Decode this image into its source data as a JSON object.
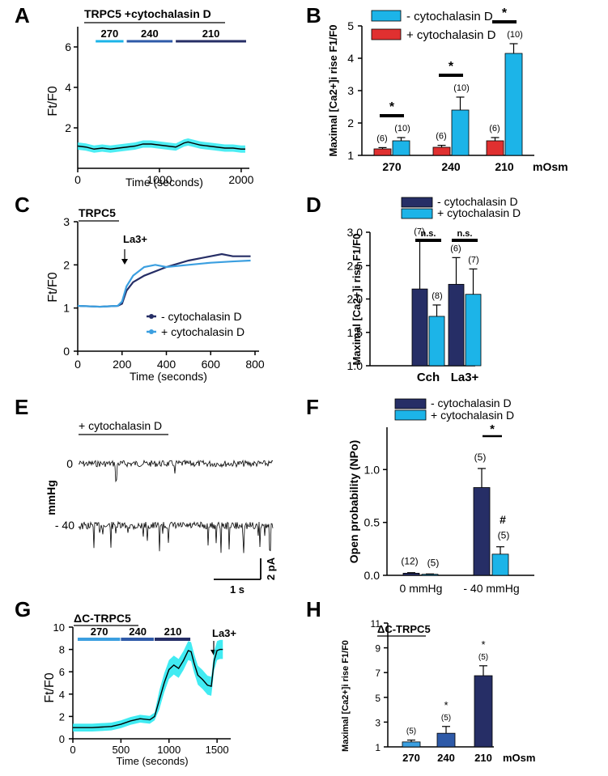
{
  "colors": {
    "dark_navy": "#262e66",
    "mid_navy": "#2e5aa8",
    "cyan": "#1cb4e8",
    "light_blue": "#3b9fe0",
    "red": "#e03030",
    "band_cyan": "#20e8f0",
    "trace": "#000000"
  },
  "panels": {
    "A": "A",
    "B": "B",
    "C": "C",
    "D": "D",
    "E": "E",
    "F": "F",
    "G": "G",
    "H": "H"
  },
  "chart_data": [
    {
      "panel": "A",
      "type": "line",
      "title": "TRPC5 +cytochalasin D",
      "ylabel": "Ft/F0",
      "xlabel": "Time (seconds)",
      "xlim": [
        0,
        2100
      ],
      "ylim": [
        0,
        7
      ],
      "xticks": [
        "0",
        "1000",
        "2000"
      ],
      "yticks": [
        "2",
        "4",
        "6"
      ],
      "segments": [
        {
          "label": "270",
          "color": "#1cb4e8",
          "from": 200,
          "to": 580
        },
        {
          "label": "240",
          "color": "#2e5aa8",
          "from": 580,
          "to": 1180
        },
        {
          "label": "210",
          "color": "#262e66",
          "from": 1180,
          "to": 2080
        }
      ],
      "series": [
        {
          "name": "TRPC5 + cytochalasin D",
          "x": [
            0,
            100,
            200,
            300,
            400,
            500,
            600,
            700,
            800,
            900,
            1000,
            1100,
            1200,
            1300,
            1350,
            1400,
            1500,
            1600,
            1700,
            1800,
            1900,
            2000,
            2050
          ],
          "y": [
            1.1,
            1.05,
            0.95,
            1.0,
            0.95,
            1.0,
            1.05,
            1.1,
            1.2,
            1.2,
            1.15,
            1.1,
            1.05,
            1.25,
            1.3,
            1.25,
            1.15,
            1.1,
            1.05,
            1.0,
            1.0,
            0.95,
            0.95
          ]
        }
      ]
    },
    {
      "panel": "B",
      "type": "bar",
      "ylabel": "Maximal [Ca2+]i rise F1/F0",
      "categories": [
        "270",
        "240",
        "210"
      ],
      "unit": "mOsm",
      "ylim": [
        1,
        5
      ],
      "yticks": [
        "1",
        "2",
        "3",
        "4",
        "5"
      ],
      "series": [
        {
          "name": "+ cytochalasin D",
          "color": "#e03030",
          "values": [
            1.2,
            1.25,
            1.45
          ],
          "errors": [
            0.04,
            0.06,
            0.1
          ],
          "n": [
            "(6)",
            "(6)",
            "(6)"
          ]
        },
        {
          "name": "- cytochalasin D",
          "color": "#1cb4e8",
          "values": [
            1.45,
            2.4,
            4.15
          ],
          "errors": [
            0.1,
            0.4,
            0.3
          ],
          "n": [
            "(10)",
            "(10)",
            "(10)"
          ]
        }
      ],
      "legend": [
        "- cytochalasin D",
        "+ cytochalasin D"
      ],
      "significance": [
        "*",
        "*",
        "*"
      ]
    },
    {
      "panel": "C",
      "type": "line",
      "title": "TRPC5",
      "ylabel": "Ft/F0",
      "xlabel": "Time (seconds)",
      "xlim": [
        0,
        800
      ],
      "ylim": [
        0,
        3
      ],
      "xticks": [
        "0",
        "200",
        "400",
        "600",
        "800"
      ],
      "yticks": [
        "0",
        "1",
        "2",
        "3"
      ],
      "annotation": "La3+",
      "series": [
        {
          "name": "- cytochalasin D",
          "color": "#262e66",
          "x": [
            0,
            100,
            180,
            200,
            220,
            250,
            300,
            400,
            500,
            600,
            650,
            700,
            780
          ],
          "y": [
            1.05,
            1.03,
            1.05,
            1.1,
            1.4,
            1.6,
            1.75,
            1.95,
            2.1,
            2.2,
            2.25,
            2.2,
            2.2
          ]
        },
        {
          "name": "+ cytochalasin D",
          "color": "#3b9fe0",
          "x": [
            0,
            100,
            180,
            200,
            220,
            250,
            300,
            350,
            400,
            500,
            600,
            700,
            780
          ],
          "y": [
            1.05,
            1.03,
            1.05,
            1.15,
            1.5,
            1.75,
            1.95,
            2.0,
            1.95,
            2.0,
            2.05,
            2.08,
            2.1
          ]
        }
      ]
    },
    {
      "panel": "D",
      "type": "bar",
      "ylabel": "Maximal [Ca2+]i rise F1/F0",
      "categories": [
        "Cch",
        "La3+"
      ],
      "ylim": [
        1,
        3
      ],
      "yticks": [
        "1.0",
        "1.5",
        "2.0",
        "2.5",
        "3.0"
      ],
      "series": [
        {
          "name": "- cytochalasin D",
          "color": "#262e66",
          "values": [
            2.15,
            2.22
          ],
          "errors": [
            0.72,
            0.4
          ],
          "n": [
            "(7)",
            "(6)"
          ]
        },
        {
          "name": "+ cytochalasin D",
          "color": "#1cb4e8",
          "values": [
            1.74,
            2.07
          ],
          "errors": [
            0.17,
            0.38
          ],
          "n": [
            "(8)",
            "(7)"
          ]
        }
      ],
      "significance": [
        "n.s.",
        "n.s."
      ]
    },
    {
      "panel": "E",
      "type": "trace",
      "label": "+ cytochalasin D",
      "levels": [
        "0",
        "- 40"
      ],
      "unit": "mmHg",
      "scale_current": "2 pA",
      "scale_time": "1 s"
    },
    {
      "panel": "F",
      "type": "bar",
      "ylabel": "Open probability (NPo)",
      "categories": [
        "0 mmHg",
        "- 40 mmHg"
      ],
      "ylim": [
        0,
        1.4
      ],
      "yticks": [
        "0.0",
        "0.5",
        "1.0"
      ],
      "series": [
        {
          "name": "- cytochalasin D",
          "color": "#262e66",
          "values": [
            0.02,
            0.83
          ],
          "errors": [
            0.005,
            0.18
          ],
          "n": [
            "(12)",
            "(5)"
          ]
        },
        {
          "name": "+ cytochalasin D",
          "color": "#1cb4e8",
          "values": [
            0.01,
            0.2
          ],
          "errors": [
            0.003,
            0.07
          ],
          "n": [
            "(5)",
            "(5)"
          ]
        }
      ],
      "significance": [
        "*"
      ],
      "annotation": "#"
    },
    {
      "panel": "G",
      "type": "line",
      "title": "ΔC-TRPC5",
      "ylabel": "Ft/F0",
      "xlabel": "Time (seconds)",
      "xlim": [
        0,
        1600
      ],
      "ylim": [
        0,
        10
      ],
      "xticks": [
        "0",
        "500",
        "1000",
        "1500"
      ],
      "yticks": [
        "0",
        "2",
        "4",
        "6",
        "8",
        "10"
      ],
      "annotation": "La3+",
      "segments": [
        {
          "label": "270",
          "color": "#3b9fe0",
          "from": 50,
          "to": 500
        },
        {
          "label": "240",
          "color": "#2e5aa8",
          "from": 500,
          "to": 850
        },
        {
          "label": "210",
          "color": "#262e66",
          "from": 850,
          "to": 1230
        }
      ],
      "series": [
        {
          "name": "ΔC-TRPC5",
          "x": [
            0,
            100,
            200,
            300,
            400,
            500,
            600,
            700,
            800,
            850,
            900,
            950,
            1000,
            1050,
            1100,
            1150,
            1200,
            1230,
            1260,
            1300,
            1350,
            1400,
            1440,
            1470,
            1500,
            1530,
            1560
          ],
          "y": [
            1.0,
            1.0,
            1.0,
            1.05,
            1.1,
            1.3,
            1.6,
            1.8,
            1.7,
            2.0,
            3.5,
            5.0,
            6.2,
            6.6,
            6.3,
            7.0,
            7.9,
            7.8,
            6.8,
            5.7,
            5.3,
            4.8,
            4.7,
            7.0,
            7.9,
            8.0,
            8.0
          ]
        }
      ]
    },
    {
      "panel": "H",
      "type": "bar",
      "title": "ΔC-TRPC5",
      "ylabel": "Maximal [Ca2+]i rise F1/F0",
      "categories": [
        "270",
        "240",
        "210"
      ],
      "unit": "mOsm",
      "ylim": [
        1,
        11
      ],
      "yticks": [
        "1",
        "3",
        "5",
        "7",
        "9",
        "11"
      ],
      "series": [
        {
          "name": "ΔC-TRPC5",
          "colors": [
            "#3b9fe0",
            "#2e5aa8",
            "#262e66"
          ],
          "values": [
            1.4,
            2.1,
            6.75
          ],
          "errors": [
            0.15,
            0.55,
            0.8
          ],
          "n": [
            "(5)",
            "(5)",
            "(5)"
          ]
        }
      ],
      "significance": [
        "",
        "*",
        "*"
      ]
    }
  ]
}
